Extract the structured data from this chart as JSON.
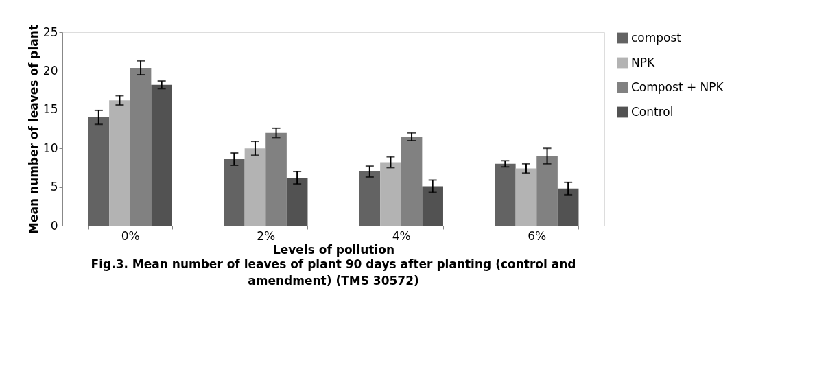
{
  "chart_data": {
    "type": "bar",
    "title": "Fig.3. Mean number of leaves of plant 90 days after planting (control and amendment) (TMS 30572)",
    "xlabel": "Levels of pollution",
    "ylabel": "Mean number of leaves of plant",
    "categories": [
      "0%",
      "2%",
      "4%",
      "6%"
    ],
    "series": [
      {
        "name": "compost",
        "color": "#636363",
        "values": [
          14,
          8.6,
          7,
          8
        ],
        "errors": [
          0.9,
          0.8,
          0.7,
          0.4
        ]
      },
      {
        "name": "NPK",
        "color": "#b3b3b3",
        "values": [
          16.2,
          10,
          8.2,
          7.4
        ],
        "errors": [
          0.6,
          0.9,
          0.7,
          0.6
        ]
      },
      {
        "name": "Compost + NPK",
        "color": "#818181",
        "values": [
          20.4,
          12,
          11.5,
          9
        ],
        "errors": [
          0.9,
          0.6,
          0.5,
          1.0
        ]
      },
      {
        "name": "Control",
        "color": "#525252",
        "values": [
          18.2,
          6.2,
          5.1,
          4.8
        ],
        "errors": [
          0.5,
          0.8,
          0.8,
          0.8
        ]
      }
    ],
    "ylim": [
      0,
      25
    ],
    "yticks": [
      0,
      5,
      10,
      15,
      20,
      25
    ],
    "grid": false,
    "legend": "right"
  }
}
